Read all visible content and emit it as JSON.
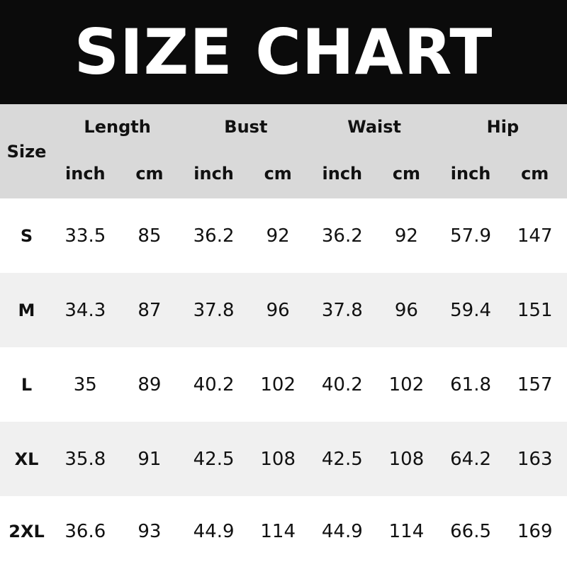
{
  "title": "SIZE CHART",
  "header": {
    "size_label": "Size",
    "groups": [
      "Length",
      "Bust",
      "Waist",
      "Hip"
    ],
    "units": [
      "inch",
      "cm",
      "inch",
      "cm",
      "inch",
      "cm",
      "inch",
      "cm"
    ]
  },
  "rows": [
    {
      "size": "S",
      "values": [
        "33.5",
        "85",
        "36.2",
        "92",
        "36.2",
        "92",
        "57.9",
        "147"
      ]
    },
    {
      "size": "M",
      "values": [
        "34.3",
        "87",
        "37.8",
        "96",
        "37.8",
        "96",
        "59.4",
        "151"
      ]
    },
    {
      "size": "L",
      "values": [
        "35",
        "89",
        "40.2",
        "102",
        "40.2",
        "102",
        "61.8",
        "157"
      ]
    },
    {
      "size": "XL",
      "values": [
        "35.8",
        "91",
        "42.5",
        "108",
        "42.5",
        "108",
        "64.2",
        "163"
      ]
    },
    {
      "size": "2XL",
      "values": [
        "36.6",
        "93",
        "44.9",
        "114",
        "44.9",
        "114",
        "66.5",
        "169"
      ]
    }
  ],
  "colors": {
    "banner": "#0b0b0b",
    "header_bg": "#d9d9d9",
    "alt_row": "#f0f0f0"
  }
}
